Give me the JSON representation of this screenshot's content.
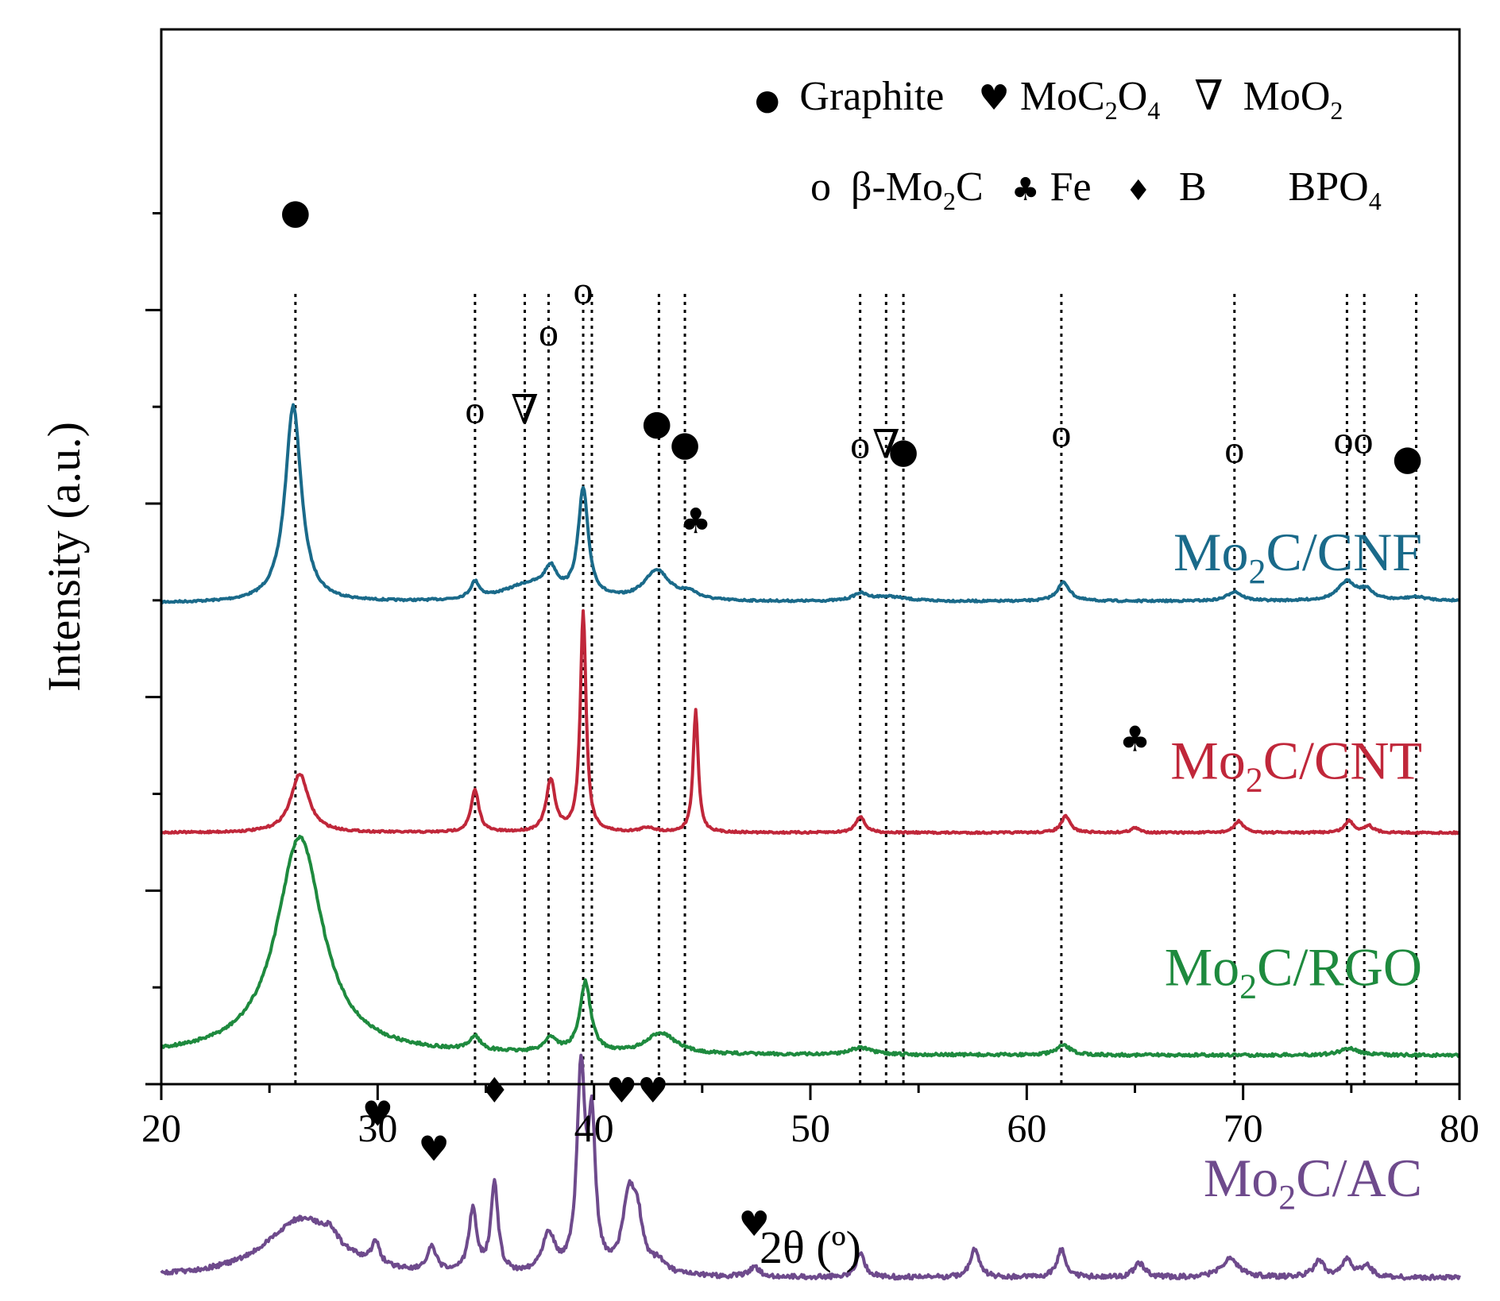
{
  "chart_data": {
    "type": "line",
    "title": "",
    "xlabel": "2θ (º)",
    "ylabel": "Intensity (a.u.)",
    "xlim": [
      20,
      80
    ],
    "xticks": [
      20,
      30,
      40,
      50,
      60,
      70,
      80
    ],
    "xtick_labels": [
      "20",
      "30",
      "40",
      "50",
      "60",
      "70",
      "80"
    ],
    "yticks_unlabeled": 5,
    "legend": {
      "placement": "top-right",
      "entries": [
        {
          "symbol": "●",
          "label": "Graphite"
        },
        {
          "symbol": "♥",
          "label": "MoC",
          "sub1": "2",
          "mid": "O",
          "sub2": "4"
        },
        {
          "symbol": "∇",
          "label": "MoO",
          "sub1": "2"
        },
        {
          "symbol": "o",
          "label": "β-Mo",
          "sub1": "2",
          "mid": "C"
        },
        {
          "symbol": "♣",
          "label": "Fe"
        },
        {
          "symbol": "♦",
          "label": "B"
        },
        {
          "symbol": "",
          "label": "BPO",
          "sub1": "4"
        }
      ]
    },
    "series": [
      {
        "name": "Mo2C/CNF",
        "label_main": "Mo",
        "label_sub": "2",
        "label_rest": "C/CNF",
        "color": "#1a6a8a",
        "baseline": 0.72,
        "noise": 0.004,
        "slope": -0.01,
        "peaks": [
          [
            26.1,
            0.84,
            0.45
          ],
          [
            34.5,
            0.07,
            0.25
          ],
          [
            37.0,
            0.07,
            1.5
          ],
          [
            38.0,
            0.1,
            0.35
          ],
          [
            39.5,
            0.46,
            0.28
          ],
          [
            42.9,
            0.13,
            0.7
          ],
          [
            44.4,
            0.03,
            0.5
          ],
          [
            52.3,
            0.03,
            0.4
          ],
          [
            53.6,
            0.02,
            1.0
          ],
          [
            61.7,
            0.08,
            0.35
          ],
          [
            69.6,
            0.04,
            0.4
          ],
          [
            74.8,
            0.08,
            0.5
          ],
          [
            75.7,
            0.04,
            0.4
          ],
          [
            78.0,
            0.015,
            0.6
          ]
        ]
      },
      {
        "name": "Mo2C/CNT",
        "label_main": "Mo",
        "label_sub": "2",
        "label_rest": "C/CNT",
        "color": "#c0273a",
        "baseline": 1.7,
        "noise": 0.004,
        "slope": 0.0,
        "peaks": [
          [
            26.4,
            0.25,
            0.5
          ],
          [
            34.5,
            0.18,
            0.22
          ],
          [
            38.0,
            0.22,
            0.25
          ],
          [
            39.5,
            0.94,
            0.16
          ],
          [
            42.5,
            0.02,
            0.4
          ],
          [
            44.7,
            0.52,
            0.14
          ],
          [
            52.3,
            0.07,
            0.25
          ],
          [
            61.8,
            0.07,
            0.25
          ],
          [
            65.0,
            0.02,
            0.25
          ],
          [
            69.8,
            0.05,
            0.25
          ],
          [
            74.9,
            0.05,
            0.25
          ],
          [
            75.8,
            0.03,
            0.25
          ]
        ]
      },
      {
        "name": "Mo2C/RGO",
        "label_main": "Mo",
        "label_sub": "2",
        "label_rest": "C/RGO",
        "color": "#1e8a3e",
        "baseline": 2.65,
        "noise": 0.006,
        "slope": 0.0,
        "peaks": [
          [
            26.4,
            0.93,
            1.3
          ],
          [
            34.5,
            0.06,
            0.3
          ],
          [
            38.0,
            0.06,
            0.35
          ],
          [
            39.6,
            0.3,
            0.3
          ],
          [
            43.1,
            0.09,
            0.8
          ],
          [
            52.3,
            0.03,
            0.6
          ],
          [
            61.7,
            0.04,
            0.4
          ],
          [
            74.9,
            0.03,
            0.5
          ]
        ]
      },
      {
        "name": "Mo2C/AC",
        "label_main": "Mo",
        "label_sub": "2",
        "label_rest": "C/AC",
        "color": "#6e4a8c",
        "baseline": 3.6,
        "noise": 0.01,
        "slope": 0.0,
        "peaks": [
          [
            26.5,
            0.25,
            2.0
          ],
          [
            27.8,
            0.05,
            0.4
          ],
          [
            29.9,
            0.1,
            0.2
          ],
          [
            32.5,
            0.1,
            0.25
          ],
          [
            34.4,
            0.27,
            0.22
          ],
          [
            35.4,
            0.38,
            0.2
          ],
          [
            37.9,
            0.17,
            0.35
          ],
          [
            39.4,
            0.85,
            0.22
          ],
          [
            39.9,
            0.6,
            0.2
          ],
          [
            41.6,
            0.3,
            0.35
          ],
          [
            42.0,
            0.2,
            0.3
          ],
          [
            43.0,
            0.05,
            0.4
          ],
          [
            47.4,
            0.04,
            0.3
          ],
          [
            52.3,
            0.1,
            0.25
          ],
          [
            57.6,
            0.12,
            0.25
          ],
          [
            61.6,
            0.12,
            0.25
          ],
          [
            65.2,
            0.06,
            0.3
          ],
          [
            69.4,
            0.08,
            0.5
          ],
          [
            73.5,
            0.07,
            0.3
          ],
          [
            74.8,
            0.07,
            0.3
          ],
          [
            75.7,
            0.05,
            0.3
          ]
        ]
      }
    ],
    "reference_lines": [
      26.2,
      34.5,
      36.8,
      37.9,
      39.5,
      39.9,
      43.0,
      44.2,
      52.3,
      53.5,
      54.3,
      61.6,
      69.6,
      74.8,
      75.6,
      78.0
    ],
    "annotations": [
      {
        "symbol": "●",
        "x": 26.2,
        "y": -0.9
      },
      {
        "symbol": "o",
        "x": 39.5,
        "y": -0.56
      },
      {
        "symbol": "o",
        "x": 37.9,
        "y": -0.38
      },
      {
        "symbol": "o",
        "x": 34.5,
        "y": -0.05
      },
      {
        "symbol": "∇",
        "x": 36.8,
        "y": -0.05
      },
      {
        "symbol": "●",
        "x": 42.9,
        "y": 0.0
      },
      {
        "symbol": "●",
        "x": 44.2,
        "y": 0.09
      },
      {
        "symbol": "o",
        "x": 52.3,
        "y": 0.1
      },
      {
        "symbol": "∇",
        "x": 53.5,
        "y": 0.1
      },
      {
        "symbol": "●",
        "x": 54.3,
        "y": 0.12
      },
      {
        "symbol": "o",
        "x": 61.6,
        "y": 0.05
      },
      {
        "symbol": "o",
        "x": 69.6,
        "y": 0.12
      },
      {
        "symbol": "oo",
        "x": 75.1,
        "y": 0.08
      },
      {
        "symbol": "●",
        "x": 77.6,
        "y": 0.15
      },
      {
        "symbol": "♣",
        "x": 44.7,
        "y": 0.42
      },
      {
        "symbol": "♣",
        "x": 65.0,
        "y": 1.35
      },
      {
        "symbol": "♥",
        "x": 30.0,
        "y": 2.95
      },
      {
        "symbol": "♥",
        "x": 32.6,
        "y": 3.1
      },
      {
        "symbol": "♦",
        "x": 35.4,
        "y": 2.85
      },
      {
        "symbol": "♥♥",
        "x": 42.0,
        "y": 2.85
      },
      {
        "symbol": "♥",
        "x": 47.4,
        "y": 3.42
      }
    ]
  }
}
